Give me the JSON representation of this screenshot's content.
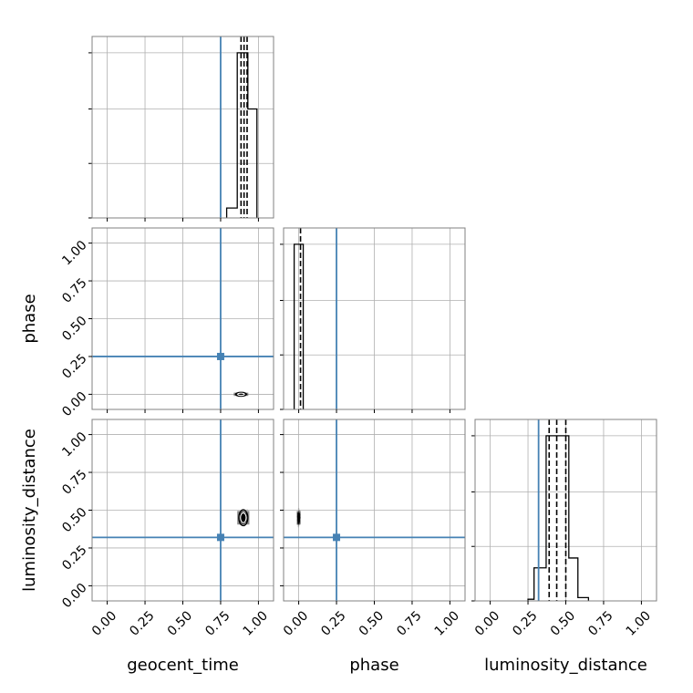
{
  "chart_data": {
    "type": "corner",
    "parameters": [
      "geocent_time",
      "phase",
      "luminosity_distance"
    ],
    "range": [
      -0.1,
      1.1
    ],
    "tick_values": [
      0.0,
      0.25,
      0.5,
      0.75,
      1.0
    ],
    "tick_labels": [
      "0.00",
      "0.25",
      "0.50",
      "0.75",
      "1.00"
    ],
    "grid": true,
    "truths": {
      "geocent_time": 0.75,
      "phase": 0.25,
      "luminosity_distance": 0.32
    },
    "truth_color": "#4682b4",
    "hist_color": "#000000",
    "histograms": {
      "geocent_time": {
        "bin_edges": [
          0.79,
          0.86,
          0.93,
          0.99
        ],
        "counts": [
          0.06,
          1.0,
          0.66
        ],
        "quantiles": [
          0.885,
          0.905,
          0.925
        ]
      },
      "phase": {
        "bin_edges": [
          -0.03,
          0.03
        ],
        "counts": [
          1.0
        ],
        "quantiles": [
          0.012
        ]
      },
      "luminosity_distance": {
        "bin_edges": [
          0.25,
          0.29,
          0.37,
          0.45,
          0.52,
          0.58,
          0.65
        ],
        "counts": [
          0.01,
          0.2,
          1.0,
          1.0,
          0.26,
          0.02
        ],
        "quantiles": [
          0.39,
          0.44,
          0.5
        ]
      }
    },
    "joint": {
      "phase_vs_geocent_time": {
        "x_center": 0.885,
        "y_center": 0.0,
        "x_spread": 0.03,
        "y_spread": 0.012
      },
      "luminosity_distance_vs_geocent_time": {
        "x_center": 0.9,
        "y_center": 0.45,
        "x_spread": 0.025,
        "y_spread": 0.05
      },
      "luminosity_distance_vs_phase": {
        "x_center": 0.0,
        "y_center": 0.45,
        "x_spread": 0.008,
        "y_spread": 0.05
      }
    }
  }
}
